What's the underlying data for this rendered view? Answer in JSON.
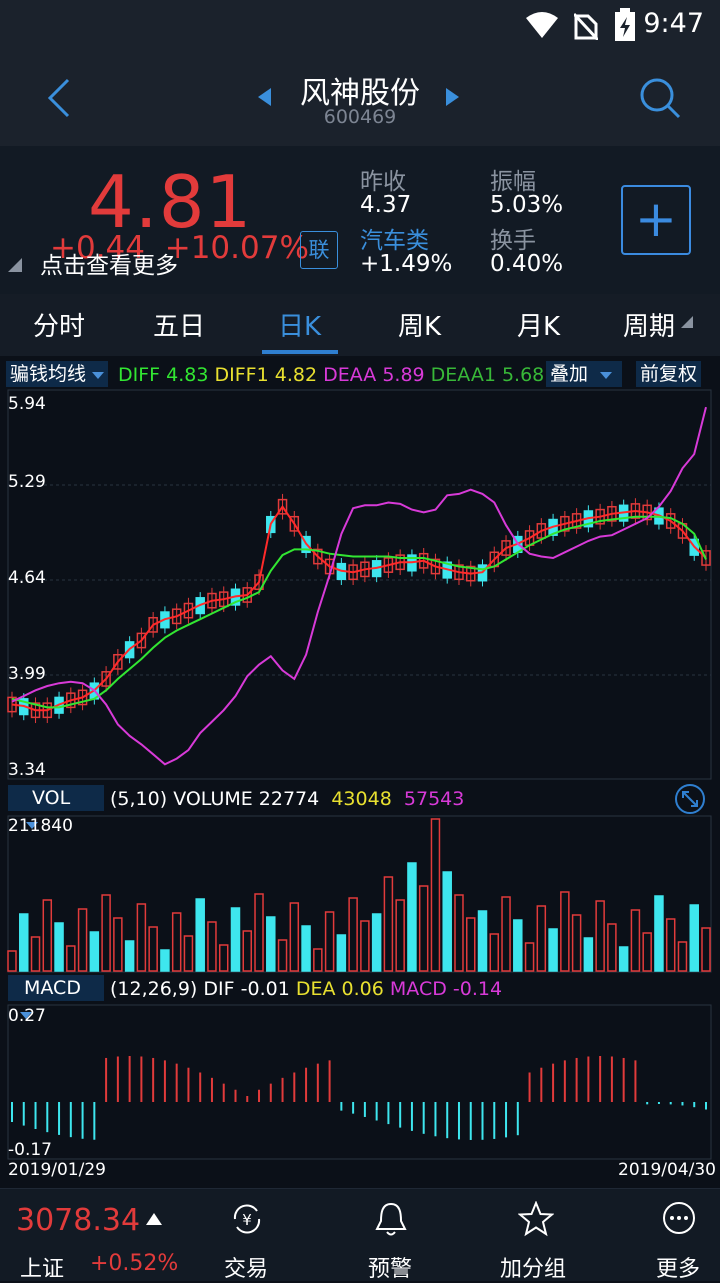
{
  "status": {
    "time": "9:47"
  },
  "header": {
    "title": "风神股份",
    "code": "600469",
    "back_icon": "chevron-left-icon",
    "search_icon": "search-icon"
  },
  "quote": {
    "price": "4.81",
    "change": "+0.44",
    "change_pct": "+10.07%",
    "tap_more": "点击查看更多",
    "lian": "联",
    "prev_close_label": "昨收",
    "prev_close": "4.37",
    "sector_label": "汽车类",
    "sector_change": "+1.49%",
    "amplitude_label": "振幅",
    "amplitude": "5.03%",
    "turnover_label": "换手",
    "turnover": "0.40%",
    "add_label": "+"
  },
  "tabs": [
    "分时",
    "五日",
    "日K",
    "周K",
    "月K",
    "周期"
  ],
  "active_tab": "日K",
  "kline": {
    "indicator_dropdown": "骗钱均线",
    "diff_label": "DIFF",
    "diff": "4.83",
    "diff1_label": "DIFF1",
    "diff1": "4.82",
    "deaa_label": "DEAA",
    "deaa": "5.89",
    "deaa1_label": "DEAA1",
    "deaa1": "5.68",
    "overlay_dropdown": "叠加",
    "adjust_button": "前复权",
    "y_ticks": [
      "5.94",
      "5.29",
      "4.64",
      "3.99",
      "3.34"
    ]
  },
  "volume": {
    "dropdown": "VOL",
    "params": "(5,10)",
    "volume_label": "VOLUME",
    "volume": "22774",
    "ma5": "43048",
    "ma10": "57543",
    "max_tick": "211840"
  },
  "macd": {
    "dropdown": "MACD",
    "params": "(12,26,9)",
    "dif_label": "DIF",
    "dif": "-0.01",
    "dea_label": "DEA",
    "dea": "0.06",
    "macd_label": "MACD",
    "macd": "-0.14",
    "top_tick": "0.27",
    "bottom_tick": "-0.17",
    "date_start": "2019/01/29",
    "date_end": "2019/04/30"
  },
  "bottom": {
    "index_value": "3078.34",
    "index_name": "上证",
    "index_change": "+0.52%",
    "items": [
      {
        "label": "交易",
        "icon": "yen-exchange-icon"
      },
      {
        "label": "预警",
        "icon": "bell-icon"
      },
      {
        "label": "加分组",
        "icon": "star-icon"
      },
      {
        "label": "更多",
        "icon": "more-dots-icon"
      }
    ]
  },
  "colors": {
    "up": "#e23b3b",
    "down": "#3ee6ee",
    "accent": "#2f7fd0",
    "ma_red": "#ff2a2a",
    "ma_green": "#32e632",
    "ma_magenta": "#d83ad8",
    "yellow": "#f0e000"
  },
  "chart_data": [
    {
      "type": "candlestick",
      "title": "",
      "ylim": [
        3.34,
        5.94
      ],
      "y_ticks": [
        5.94,
        5.29,
        4.64,
        3.99,
        3.34
      ],
      "x_range": [
        "2019/01/29",
        "2019/04/30"
      ],
      "series": [
        {
          "name": "DIFF",
          "values": [
            3.8,
            3.79,
            3.76,
            3.76,
            3.8,
            3.83,
            3.85,
            3.9,
            3.98,
            4.1,
            4.19,
            4.25,
            4.36,
            4.4,
            4.42,
            4.46,
            4.5,
            4.53,
            4.54,
            4.56,
            4.57,
            4.66,
            5.07,
            5.19,
            5.07,
            4.93,
            4.84,
            4.77,
            4.74,
            4.73,
            4.75,
            4.76,
            4.78,
            4.8,
            4.8,
            4.81,
            4.77,
            4.75,
            4.73,
            4.72,
            4.73,
            4.82,
            4.9,
            4.93,
            4.97,
            5.02,
            5.05,
            5.07,
            5.09,
            5.11,
            5.12,
            5.14,
            5.15,
            5.16,
            5.15,
            5.13,
            5.09,
            5.02,
            4.91,
            4.83
          ]
        },
        {
          "name": "DIFF1",
          "values": [
            3.84,
            3.82,
            3.8,
            3.78,
            3.78,
            3.8,
            3.82,
            3.84,
            3.9,
            3.98,
            4.05,
            4.12,
            4.2,
            4.27,
            4.32,
            4.36,
            4.4,
            4.44,
            4.48,
            4.52,
            4.55,
            4.59,
            4.74,
            4.85,
            4.89,
            4.89,
            4.88,
            4.86,
            4.85,
            4.84,
            4.84,
            4.84,
            4.84,
            4.83,
            4.83,
            4.83,
            4.81,
            4.79,
            4.77,
            4.76,
            4.75,
            4.77,
            4.82,
            4.87,
            4.92,
            4.96,
            5.0,
            5.03,
            5.05,
            5.07,
            5.09,
            5.1,
            5.11,
            5.12,
            5.12,
            5.12,
            5.11,
            5.07,
            5.0,
            4.82
          ]
        },
        {
          "name": "DEAA",
          "values": [
            3.82,
            3.86,
            3.9,
            3.93,
            3.95,
            3.96,
            3.95,
            3.9,
            3.8,
            3.66,
            3.58,
            3.52,
            3.45,
            3.38,
            3.42,
            3.48,
            3.6,
            3.68,
            3.76,
            3.86,
            4.0,
            4.08,
            4.14,
            4.04,
            3.98,
            4.15,
            4.45,
            4.71,
            5.0,
            5.18,
            5.2,
            5.2,
            5.22,
            5.21,
            5.17,
            5.15,
            5.17,
            5.27,
            5.28,
            5.31,
            5.28,
            5.22,
            5.06,
            4.93,
            4.86,
            4.84,
            4.83,
            4.87,
            4.91,
            4.95,
            4.98,
            4.99,
            5.03,
            5.07,
            5.11,
            5.19,
            5.3,
            5.46,
            5.56,
            5.89
          ]
        }
      ]
    },
    {
      "type": "bar",
      "title": "",
      "ylim": [
        0,
        211840
      ],
      "series": [
        {
          "name": "VOLUME",
          "latest": 22774
        },
        {
          "name": "MA5",
          "latest": 43048
        },
        {
          "name": "MA10",
          "latest": 57543
        }
      ]
    },
    {
      "type": "bar",
      "title": "",
      "ylim": [
        -0.17,
        0.27
      ],
      "x_range": [
        "2019/01/29",
        "2019/04/30"
      ],
      "series": [
        {
          "name": "DIF",
          "latest": -0.01
        },
        {
          "name": "DEA",
          "latest": 0.06
        },
        {
          "name": "MACD",
          "latest": -0.14
        }
      ]
    }
  ]
}
